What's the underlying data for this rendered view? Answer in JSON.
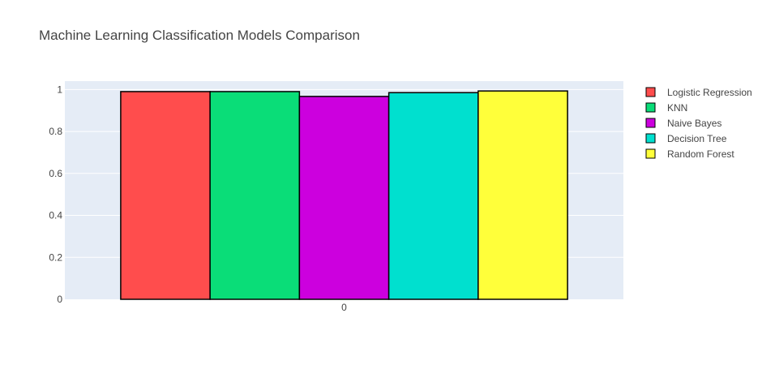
{
  "chart_data": {
    "type": "bar",
    "title": "Machine Learning Classification Models Comparison",
    "categories": [
      "0"
    ],
    "series": [
      {
        "name": "Logistic Regression",
        "values": [
          0.99
        ],
        "color": "#ff4d4d"
      },
      {
        "name": "KNN",
        "values": [
          0.99
        ],
        "color": "#0add78"
      },
      {
        "name": "Naive Bayes",
        "values": [
          0.967
        ],
        "color": "#cc00de"
      },
      {
        "name": "Decision Tree",
        "values": [
          0.985
        ],
        "color": "#00e0cf"
      },
      {
        "name": "Random Forest",
        "values": [
          0.993
        ],
        "color": "#ffff3a"
      }
    ],
    "yticks": [
      "0",
      "0.2",
      "0.4",
      "0.6",
      "0.8",
      "1"
    ],
    "ylim": [
      0,
      1.04
    ],
    "grid": true,
    "legend_position": "top-right",
    "background_color": "#e5ecf6",
    "bar_outline_color": "#000000"
  }
}
